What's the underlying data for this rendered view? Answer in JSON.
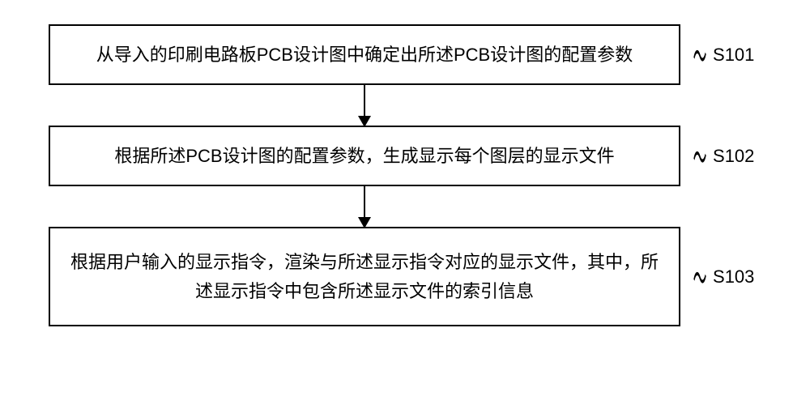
{
  "flowchart": {
    "type": "flowchart",
    "background_color": "#ffffff",
    "box_border_color": "#000000",
    "box_border_width": 2,
    "arrow_color": "#000000",
    "font_size": 22,
    "font_family": "SimSun",
    "steps": [
      {
        "label": "S101",
        "text": "从导入的印刷电路板PCB设计图中确定出所述PCB设计图的配置参数"
      },
      {
        "label": "S102",
        "text": "根据所述PCB设计图的配置参数，生成显示每个图层的显示文件"
      },
      {
        "label": "S103",
        "text": "根据用户输入的显示指令，渲染与所述显示指令对应的显示文件，其中，所述显示指令中包含所述显示文件的索引信息"
      }
    ]
  }
}
